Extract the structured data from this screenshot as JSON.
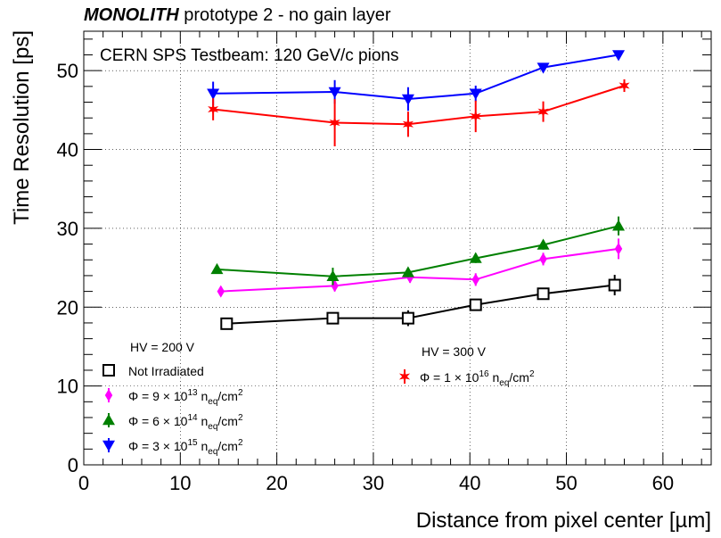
{
  "header": {
    "title_bold": "MONOLITH",
    "title_rest": " prototype 2 - no gain layer"
  },
  "chart_data": {
    "type": "scatter",
    "annotation": "CERN SPS Testbeam: 120 GeV/c pions",
    "xlabel": "Distance from pixel center [µm]",
    "ylabel": "Time Resolution [ps]",
    "xlim": [
      0,
      65
    ],
    "ylim": [
      0,
      55
    ],
    "xticks": [
      0,
      10,
      20,
      30,
      40,
      50,
      60
    ],
    "yticks": [
      0,
      10,
      20,
      30,
      40,
      50
    ],
    "grid": true,
    "legend_hv200_title": "HV = 200 V",
    "legend_hv300_title": "HV = 300 V",
    "series": [
      {
        "name": "Not Irradiated",
        "label_parts": [
          "Not Irradiated"
        ],
        "color": "#000000",
        "marker": "open-square",
        "x": [
          14.8,
          25.8,
          33.6,
          40.6,
          47.6,
          55.0
        ],
        "y": [
          17.9,
          18.6,
          18.6,
          20.3,
          21.7,
          22.8
        ],
        "yerr": [
          0.4,
          0.6,
          1.0,
          0.5,
          0.6,
          1.3
        ]
      },
      {
        "name": "Φ = 9 × 10^13 neq/cm^2",
        "label_parts": [
          "Φ = 9 × 10",
          "13",
          " n",
          "eq",
          "/cm",
          "2"
        ],
        "color": "#ff00ff",
        "marker": "diamond",
        "x": [
          14.2,
          26.0,
          33.8,
          40.6,
          47.6,
          55.4
        ],
        "y": [
          22.0,
          22.7,
          23.8,
          23.5,
          26.1,
          27.4
        ],
        "yerr": [
          0.6,
          0.7,
          0.7,
          0.8,
          0.8,
          1.3
        ]
      },
      {
        "name": "Φ = 6 × 10^14 neq/cm^2",
        "label_parts": [
          "Φ = 6 × 10",
          "14",
          " n",
          "eq",
          "/cm",
          "2"
        ],
        "color": "#008000",
        "marker": "triangle-up",
        "x": [
          13.8,
          25.8,
          33.6,
          40.6,
          47.6,
          55.4
        ],
        "y": [
          24.8,
          23.9,
          24.4,
          26.2,
          27.9,
          30.3
        ],
        "yerr": [
          0.4,
          1.1,
          0.6,
          0.6,
          0.6,
          1.2
        ]
      },
      {
        "name": "Φ = 3 × 10^15 neq/cm^2",
        "label_parts": [
          "Φ = 3 × 10",
          "15",
          " n",
          "eq",
          "/cm",
          "2"
        ],
        "color": "#0000ff",
        "marker": "triangle-down",
        "x": [
          13.4,
          26.0,
          33.6,
          40.6,
          47.6,
          55.4
        ],
        "y": [
          47.1,
          47.3,
          46.4,
          47.1,
          50.4,
          52.0
        ],
        "yerr": [
          1.5,
          1.5,
          1.5,
          1.0,
          0.3,
          0.3
        ]
      },
      {
        "name": "Φ = 1 × 10^16 neq/cm^2",
        "label_parts": [
          "Φ = 1 × 10",
          "16",
          " n",
          "eq",
          "/cm",
          "2"
        ],
        "color": "#ff0000",
        "marker": "star",
        "x": [
          13.4,
          26.0,
          33.6,
          40.6,
          47.6,
          56.0
        ],
        "y": [
          45.1,
          43.4,
          43.2,
          44.2,
          44.8,
          48.1
        ],
        "yerr": [
          1.4,
          3.0,
          1.6,
          2.0,
          1.3,
          0.8
        ]
      }
    ]
  }
}
